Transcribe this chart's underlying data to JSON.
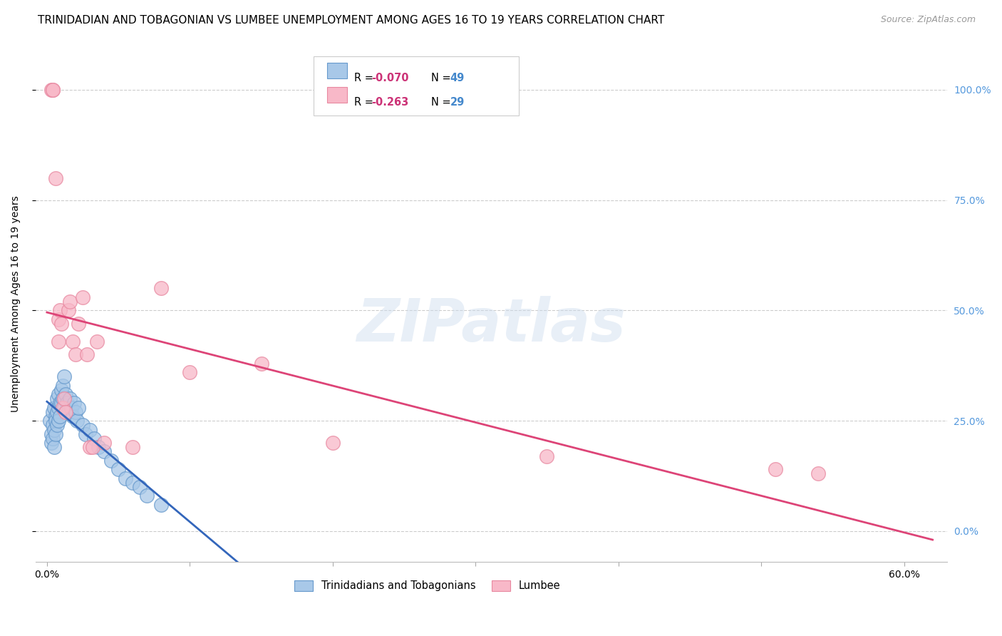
{
  "title": "TRINIDADIAN AND TOBAGONIAN VS LUMBEE UNEMPLOYMENT AMONG AGES 16 TO 19 YEARS CORRELATION CHART",
  "source": "Source: ZipAtlas.com",
  "ylabel": "Unemployment Among Ages 16 to 19 years",
  "xtick_vals": [
    0.0,
    0.1,
    0.2,
    0.3,
    0.4,
    0.5,
    0.6
  ],
  "xtick_labels": [
    "0.0%",
    "",
    "",
    "",
    "",
    "",
    "60.0%"
  ],
  "ytick_vals": [
    0.0,
    0.25,
    0.5,
    0.75,
    1.0
  ],
  "ytick_right_labels": [
    "0.0%",
    "25.0%",
    "50.0%",
    "75.0%",
    "100.0%"
  ],
  "xlim": [
    -0.008,
    0.63
  ],
  "ylim": [
    -0.07,
    1.1
  ],
  "blue_color": "#a8c8e8",
  "blue_edge_color": "#6699cc",
  "pink_color": "#f8b8c8",
  "pink_edge_color": "#e888a0",
  "blue_line_color": "#3366bb",
  "pink_line_color": "#dd4477",
  "blue_dashed_color": "#88aadd",
  "right_tick_color": "#5599dd",
  "watermark_text": "ZIPatlas",
  "title_fontsize": 11,
  "source_fontsize": 9,
  "ylabel_fontsize": 10,
  "tick_fontsize": 10,
  "legend_fontsize": 10.5,
  "legend_r_color": "#cc3377",
  "legend_n_color": "#4488cc",
  "blue_x": [
    0.002,
    0.003,
    0.003,
    0.004,
    0.004,
    0.004,
    0.005,
    0.005,
    0.005,
    0.006,
    0.006,
    0.006,
    0.007,
    0.007,
    0.007,
    0.008,
    0.008,
    0.008,
    0.009,
    0.009,
    0.01,
    0.01,
    0.011,
    0.011,
    0.012,
    0.012,
    0.013,
    0.014,
    0.015,
    0.016,
    0.017,
    0.018,
    0.019,
    0.02,
    0.021,
    0.022,
    0.025,
    0.027,
    0.03,
    0.033,
    0.036,
    0.04,
    0.045,
    0.05,
    0.055,
    0.06,
    0.065,
    0.07,
    0.08
  ],
  "blue_y": [
    0.25,
    0.22,
    0.2,
    0.27,
    0.24,
    0.21,
    0.28,
    0.23,
    0.19,
    0.26,
    0.25,
    0.22,
    0.3,
    0.27,
    0.24,
    0.31,
    0.28,
    0.25,
    0.29,
    0.26,
    0.32,
    0.29,
    0.33,
    0.3,
    0.28,
    0.35,
    0.31,
    0.29,
    0.27,
    0.3,
    0.28,
    0.26,
    0.29,
    0.27,
    0.25,
    0.28,
    0.24,
    0.22,
    0.23,
    0.21,
    0.19,
    0.18,
    0.16,
    0.14,
    0.12,
    0.11,
    0.1,
    0.08,
    0.06
  ],
  "pink_x": [
    0.003,
    0.004,
    0.004,
    0.006,
    0.008,
    0.008,
    0.009,
    0.01,
    0.011,
    0.012,
    0.013,
    0.015,
    0.016,
    0.018,
    0.02,
    0.022,
    0.025,
    0.028,
    0.03,
    0.032,
    0.035,
    0.04,
    0.06,
    0.08,
    0.1,
    0.15,
    0.2,
    0.35,
    0.51,
    0.54
  ],
  "pink_y": [
    1.0,
    1.0,
    1.0,
    0.8,
    0.48,
    0.43,
    0.5,
    0.47,
    0.28,
    0.3,
    0.27,
    0.5,
    0.52,
    0.43,
    0.4,
    0.47,
    0.53,
    0.4,
    0.19,
    0.19,
    0.43,
    0.2,
    0.19,
    0.55,
    0.36,
    0.38,
    0.2,
    0.17,
    0.14,
    0.13
  ],
  "blue_line_x_solid_end": 0.32,
  "blue_line_x_start": 0.0,
  "blue_line_x_end": 0.62,
  "pink_line_x_start": 0.0,
  "pink_line_x_end": 0.62
}
